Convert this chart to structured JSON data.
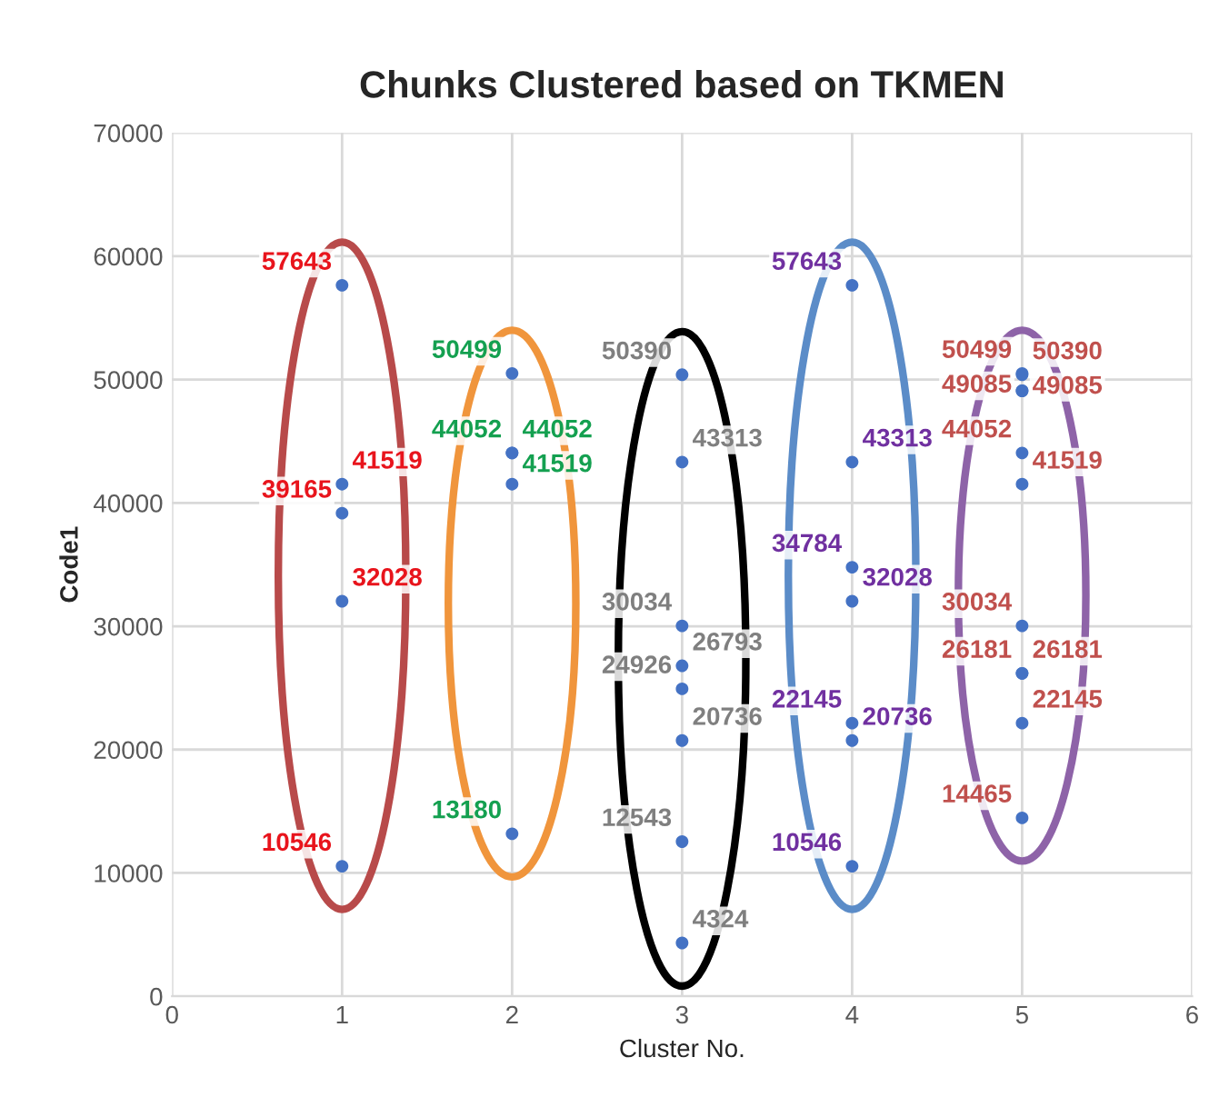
{
  "chart_data": {
    "type": "scatter",
    "title": "Chunks Clustered based on TKMEN",
    "xlabel": "Cluster No.",
    "ylabel": "Code1",
    "series": [
      {
        "x": [
          1,
          1,
          1,
          1,
          1
        ],
        "values": [
          57643,
          41519,
          39165,
          32028,
          10546
        ],
        "color": "#4472c4"
      },
      {
        "x": [
          2,
          2,
          2,
          2,
          2
        ],
        "values": [
          50499,
          44052,
          41519,
          44052,
          13180
        ],
        "color": "#4472c4"
      },
      {
        "x": [
          3,
          3,
          3,
          3,
          3,
          3,
          3,
          3
        ],
        "values": [
          50390,
          43313,
          30034,
          26793,
          24926,
          20736,
          12543,
          4324
        ],
        "color": "#4472c4"
      },
      {
        "x": [
          4,
          4,
          4,
          4,
          4,
          4,
          4
        ],
        "values": [
          57643,
          43313,
          34784,
          32028,
          20736,
          22145,
          10546
        ],
        "color": "#4472c4"
      },
      {
        "x": [
          5,
          5,
          5,
          5,
          5,
          5,
          5,
          5,
          5,
          5,
          5
        ],
        "values": [
          50390,
          49085,
          50499,
          49085,
          44052,
          41519,
          30034,
          26181,
          26181,
          22145,
          14465
        ],
        "color": "#4472c4"
      }
    ],
    "data_labels": true,
    "marker": "circle",
    "grid": true,
    "xlim": [
      0,
      6
    ],
    "xticks": [
      0,
      1,
      2,
      3,
      4,
      5,
      6
    ],
    "ylim": [
      0,
      70000
    ],
    "yticks": [
      0,
      10000,
      20000,
      30000,
      40000,
      50000,
      60000,
      70000
    ]
  }
}
